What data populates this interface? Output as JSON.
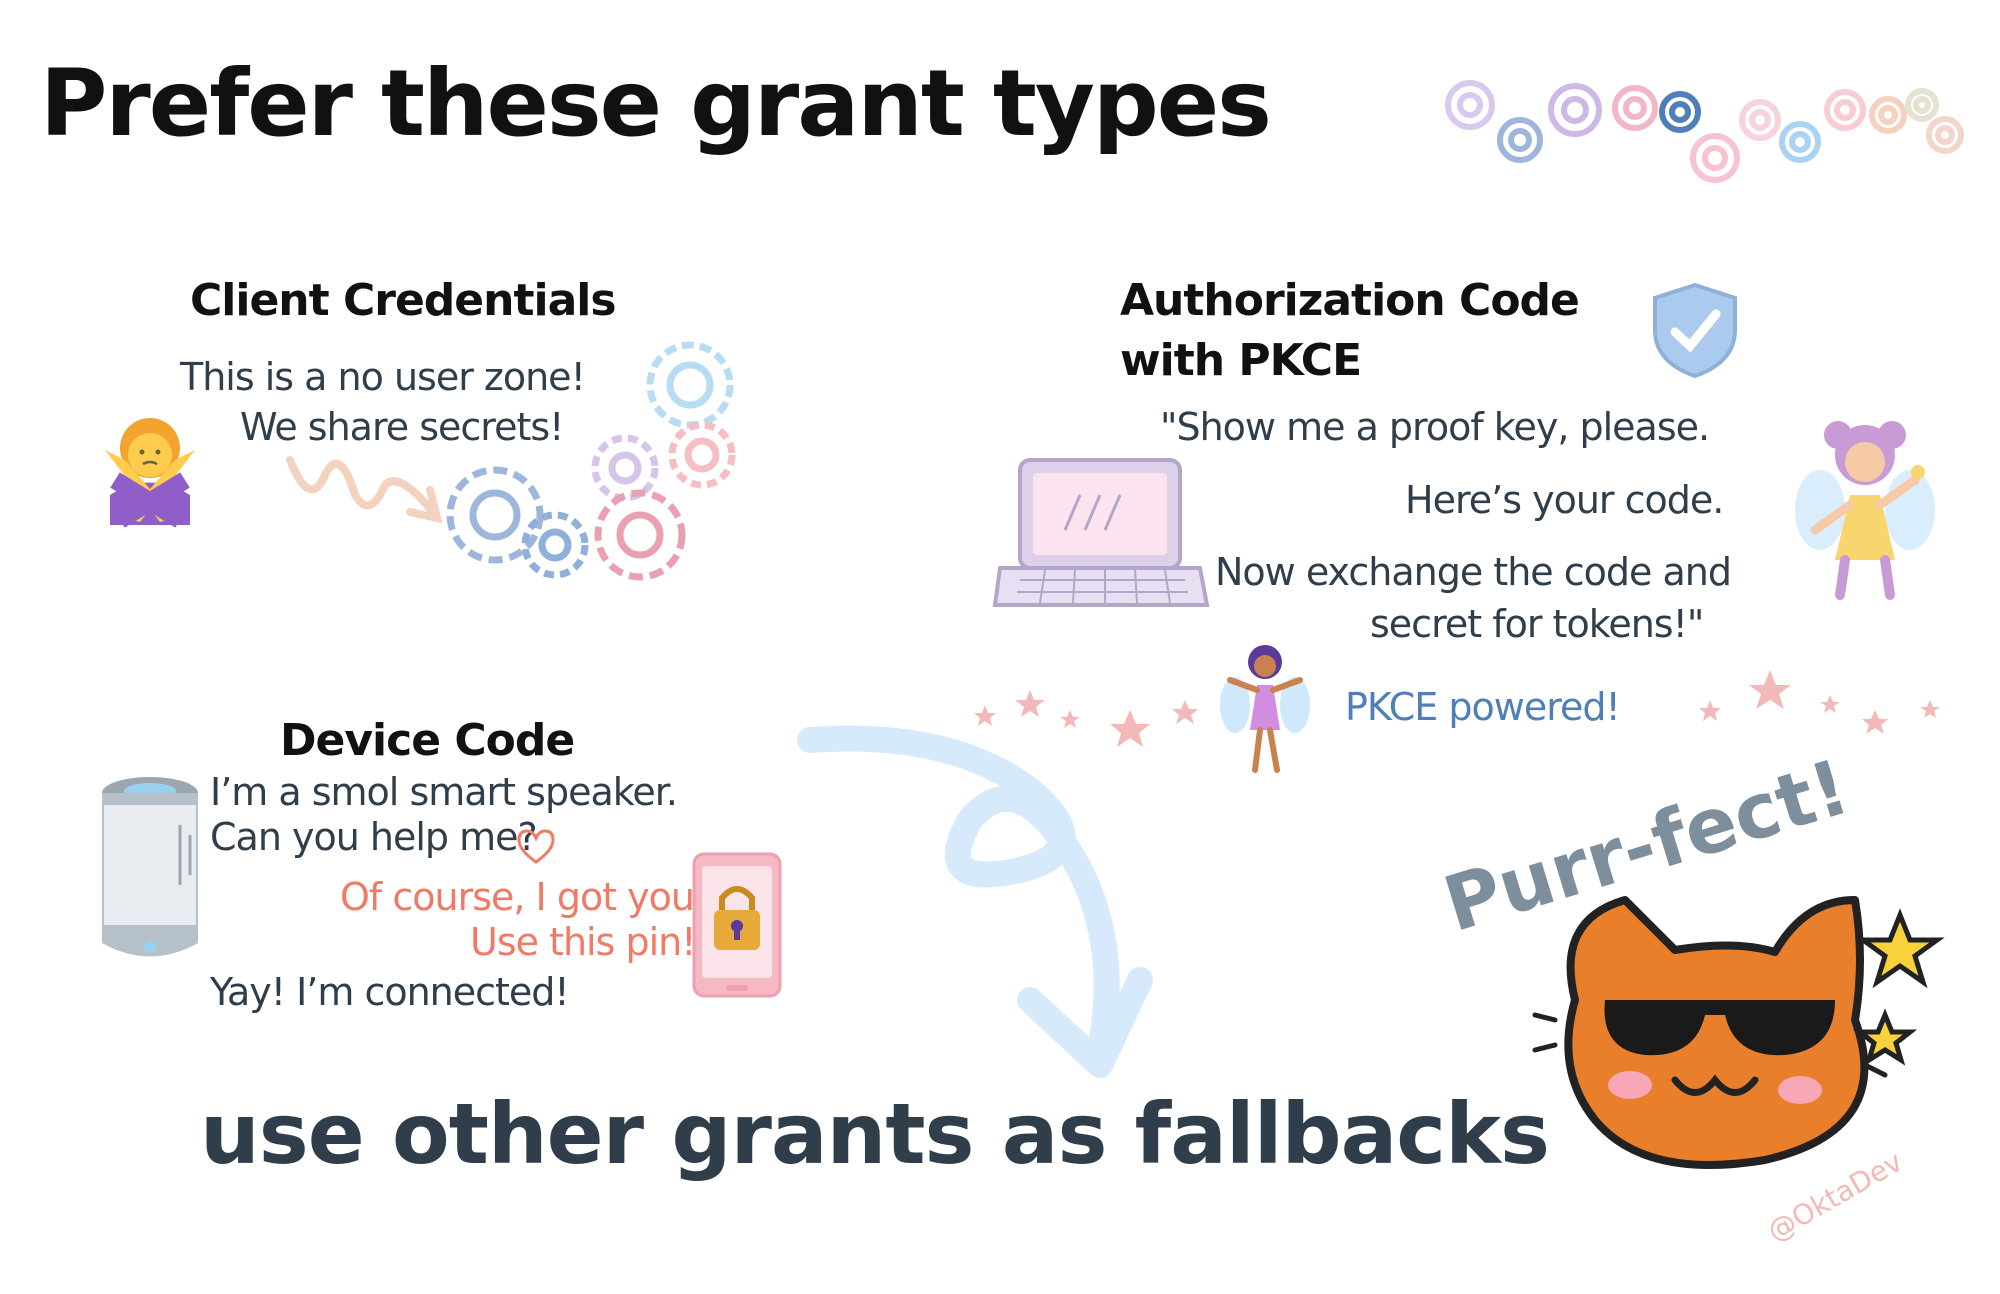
{
  "title": "Prefer these grant types",
  "client_credentials": {
    "title": "Client Credentials",
    "lines": [
      "This is a no user zone!",
      "We share secrets!"
    ]
  },
  "auth_code": {
    "title_line1": "Authorization Code",
    "title_line2": "with PKCE",
    "lines": [
      "\"Show me a proof key, please.",
      "Here’s your code.",
      "Now exchange the code and",
      "secret for tokens!\""
    ],
    "pkce_note": "PKCE powered!"
  },
  "device_code": {
    "title": "Device Code",
    "lines": [
      "I’m a smol smart speaker.",
      "Can you help me?"
    ],
    "reply_lines": [
      "Of course, I got you!",
      "Use this pin!"
    ],
    "final_line": "Yay! I’m connected!"
  },
  "fallback": "use other grants as fallbacks",
  "cat_caption": "Purr-fect!",
  "handle": "@OktaDev",
  "icons": [
    "gear-icon",
    "person-gesturing-no-icon",
    "wavy-arrow-icon",
    "shield-check-icon",
    "laptop-icon",
    "fairy-icon",
    "star-icon",
    "smart-speaker-icon",
    "heart-icon",
    "phone-lock-icon",
    "curved-arrow-icon",
    "cool-cat-icon"
  ],
  "colors": {
    "text": "#2f3e4a",
    "accent_pink": "#f07a66",
    "accent_blue": "#4f7fb6",
    "arrow": "#d6eafb",
    "cat_orange": "#e97f2b"
  }
}
